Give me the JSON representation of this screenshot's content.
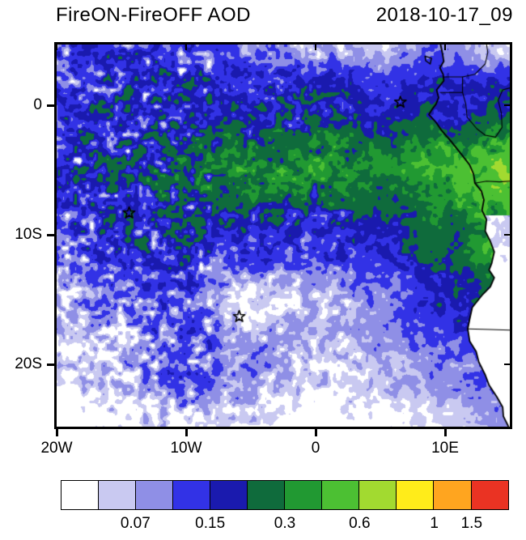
{
  "header": {
    "title": "FireON-FireOFF AOD",
    "date": "2018-10-17_09"
  },
  "axes": {
    "x_ticks": [
      {
        "label": "20W",
        "lon": -20
      },
      {
        "label": "10W",
        "lon": -10
      },
      {
        "label": "0",
        "lon": 0
      },
      {
        "label": "10E",
        "lon": 10
      }
    ],
    "y_ticks": [
      {
        "label": "0",
        "lat": 0
      },
      {
        "label": "10S",
        "lat": -10
      },
      {
        "label": "20S",
        "lat": -20
      }
    ]
  },
  "colorbar": {
    "colors": [
      "#ffffff",
      "#c9c9f1",
      "#8f8fe6",
      "#3232e6",
      "#1a1aae",
      "#0f6b3c",
      "#219932",
      "#4cc033",
      "#a2da30",
      "#ffec1a",
      "#ffa51f",
      "#ea3323"
    ],
    "levels": [
      0.05,
      0.07,
      0.1,
      0.15,
      0.2,
      0.3,
      0.4,
      0.6,
      0.8,
      1,
      1.5
    ],
    "tick_labels": [
      {
        "text": "0.07",
        "boundary": 2
      },
      {
        "text": "0.15",
        "boundary": 4
      },
      {
        "text": "0.3",
        "boundary": 6
      },
      {
        "text": "0.6",
        "boundary": 8
      },
      {
        "text": "1",
        "boundary": 10
      },
      {
        "text": "1.5",
        "boundary": 11
      }
    ]
  },
  "chart_data": {
    "type": "heatmap",
    "title": "FireON-FireOFF AOD",
    "timestamp": "2018-10-17_09",
    "lon_range": [
      -20,
      15
    ],
    "lat_range": [
      -24.8,
      4.7
    ],
    "levels": [
      0.05,
      0.07,
      0.1,
      0.15,
      0.2,
      0.3,
      0.4,
      0.6,
      0.8,
      1,
      1.5
    ],
    "grid": {
      "lons": [
        -20,
        -15,
        -10,
        -5,
        0,
        5,
        10,
        15
      ],
      "lats": [
        5,
        0,
        -5,
        -10,
        -15,
        -20,
        -25
      ],
      "aod_diff": [
        [
          0.11,
          0.13,
          0.11,
          0.09,
          0.07,
          0.06,
          0.1,
          0.06
        ],
        [
          0.13,
          0.15,
          0.16,
          0.17,
          0.18,
          0.16,
          0.19,
          0.24
        ],
        [
          0.15,
          0.19,
          0.24,
          0.3,
          0.3,
          0.3,
          0.38,
          0.7
        ],
        [
          0.11,
          0.15,
          0.17,
          0.14,
          0.14,
          0.16,
          0.24,
          0.45
        ],
        [
          0.07,
          0.1,
          0.11,
          0.05,
          0.06,
          0.09,
          0.16,
          0.22
        ],
        [
          0.05,
          0.07,
          0.11,
          0.09,
          0.06,
          0.07,
          0.09,
          0.12
        ],
        [
          0.02,
          0.04,
          0.05,
          0.05,
          0.03,
          0.04,
          0.05,
          0.08
        ]
      ]
    },
    "markers": [
      {
        "type": "star",
        "lon": -14.4,
        "lat": -8.3
      },
      {
        "type": "star",
        "lon": -5.9,
        "lat": -16.3
      },
      {
        "type": "star",
        "lon": 6.55,
        "lat": 0.25
      }
    ],
    "coastline": [
      [
        9.65,
        4.7
      ],
      [
        9.8,
        4.0
      ],
      [
        9.9,
        3.4
      ],
      [
        9.6,
        2.9
      ],
      [
        9.85,
        2.4
      ],
      [
        9.9,
        1.9
      ],
      [
        9.35,
        1.2
      ],
      [
        9.5,
        0.6
      ],
      [
        9.3,
        0.1
      ],
      [
        9.0,
        -0.3
      ],
      [
        8.75,
        -0.7
      ],
      [
        9.3,
        -1.3
      ],
      [
        9.7,
        -1.9
      ],
      [
        10.4,
        -2.7
      ],
      [
        11.2,
        -3.7
      ],
      [
        11.9,
        -4.6
      ],
      [
        12.2,
        -5.3
      ],
      [
        12.3,
        -6.0
      ],
      [
        12.8,
        -6.6
      ],
      [
        13.0,
        -7.3
      ],
      [
        12.85,
        -8.1
      ],
      [
        13.2,
        -8.8
      ],
      [
        13.1,
        -9.7
      ],
      [
        13.5,
        -10.5
      ],
      [
        13.8,
        -11.3
      ],
      [
        13.6,
        -12.2
      ],
      [
        13.4,
        -12.7
      ],
      [
        13.8,
        -13.3
      ],
      [
        13.5,
        -14.0
      ],
      [
        12.9,
        -14.6
      ],
      [
        12.5,
        -15.1
      ],
      [
        12.1,
        -15.6
      ],
      [
        11.9,
        -16.5
      ],
      [
        11.75,
        -17.25
      ],
      [
        11.9,
        -18.2
      ],
      [
        12.4,
        -19.0
      ],
      [
        12.6,
        -19.8
      ],
      [
        13.1,
        -20.8
      ],
      [
        13.4,
        -21.6
      ],
      [
        14.0,
        -22.5
      ],
      [
        14.45,
        -23.3
      ],
      [
        14.5,
        -24.0
      ],
      [
        14.9,
        -24.8
      ]
    ],
    "borders": [
      [
        [
          9.85,
          2.2
        ],
        [
          11.35,
          2.2
        ],
        [
          11.35,
          1.0
        ],
        [
          9.6,
          1.0
        ]
      ],
      [
        [
          11.35,
          1.0
        ],
        [
          11.6,
          0.1
        ],
        [
          11.7,
          -0.9
        ],
        [
          12.45,
          -1.8
        ],
        [
          13.1,
          -2.3
        ],
        [
          13.9,
          -2.45
        ],
        [
          14.4,
          -1.7
        ],
        [
          14.35,
          -0.6
        ],
        [
          14.1,
          0.4
        ],
        [
          14.45,
          1.2
        ],
        [
          15.0,
          1.35
        ]
      ],
      [
        [
          11.35,
          2.2
        ],
        [
          12.3,
          2.4
        ],
        [
          13.1,
          3.2
        ],
        [
          13.3,
          4.1
        ],
        [
          13.2,
          4.7
        ]
      ],
      [
        [
          12.3,
          -6.0
        ],
        [
          13.2,
          -5.85
        ],
        [
          14.2,
          -5.9
        ],
        [
          15.0,
          -5.85
        ]
      ],
      [
        [
          11.75,
          -17.25
        ],
        [
          13.5,
          -17.3
        ],
        [
          15.0,
          -17.35
        ]
      ]
    ],
    "islands": [
      [
        [
          8.45,
          3.8
        ],
        [
          8.95,
          3.65
        ],
        [
          8.85,
          3.2
        ],
        [
          8.5,
          3.45
        ]
      ]
    ]
  }
}
